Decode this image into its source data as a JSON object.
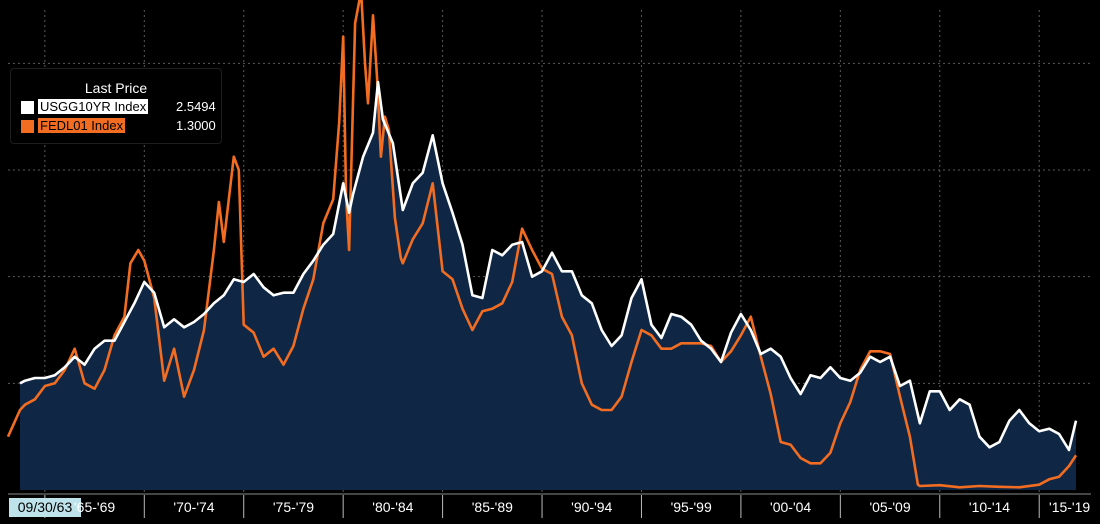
{
  "chart_data": {
    "type": "line",
    "x_tick_labels": [
      "09/30/63",
      "'65-'69",
      "'70-'74",
      "'75-'79",
      "'80-'84",
      "'85-'89",
      "'90-'94",
      "'95-'99",
      "'00-'04",
      "'05-'09",
      "'10-'14",
      "'15-'19"
    ],
    "x_start_label": "09/30/63",
    "xlim": [
      1963.75,
      2016.85
    ],
    "ylim": [
      0,
      18
    ],
    "grid": true,
    "legend": {
      "title": "Last Price",
      "placement": "top-left",
      "entries": [
        {
          "name": "USGG10YR Index",
          "value": "2.5494",
          "color": "#ffffff"
        },
        {
          "name": "FEDL01 Index",
          "value": "1.3000",
          "color": "#f26d21"
        }
      ]
    },
    "series": [
      {
        "name": "USGG10YR Index",
        "color": "#ffffff",
        "fill": "#0f2744",
        "x": [
          1963.75,
          1964.0,
          1964.5,
          1965.0,
          1965.5,
          1966.0,
          1966.5,
          1967.0,
          1967.5,
          1968.0,
          1968.5,
          1969.0,
          1969.5,
          1970.0,
          1970.5,
          1971.0,
          1971.5,
          1972.0,
          1972.5,
          1973.0,
          1973.5,
          1974.0,
          1974.5,
          1975.0,
          1975.5,
          1976.0,
          1976.5,
          1977.0,
          1977.5,
          1978.0,
          1978.5,
          1979.0,
          1979.5,
          1980.0,
          1980.3,
          1980.5,
          1981.0,
          1981.5,
          1981.75,
          1982.0,
          1982.5,
          1983.0,
          1983.5,
          1984.0,
          1984.5,
          1985.0,
          1985.5,
          1986.0,
          1986.5,
          1987.0,
          1987.5,
          1988.0,
          1988.5,
          1989.0,
          1989.5,
          1990.0,
          1990.5,
          1991.0,
          1991.5,
          1992.0,
          1992.5,
          1993.0,
          1993.5,
          1994.0,
          1994.5,
          1995.0,
          1995.5,
          1996.0,
          1996.5,
          1997.0,
          1997.5,
          1998.0,
          1998.5,
          1999.0,
          1999.5,
          2000.0,
          2000.5,
          2001.0,
          2001.5,
          2002.0,
          2002.5,
          2003.0,
          2003.5,
          2004.0,
          2004.5,
          2005.0,
          2005.5,
          2006.0,
          2006.5,
          2007.0,
          2007.5,
          2008.0,
          2008.5,
          2009.0,
          2009.5,
          2010.0,
          2010.5,
          2011.0,
          2011.5,
          2012.0,
          2012.5,
          2013.0,
          2013.5,
          2014.0,
          2014.5,
          2015.0,
          2015.5,
          2016.0,
          2016.5,
          2016.85
        ],
        "values": [
          4.0,
          4.1,
          4.2,
          4.2,
          4.3,
          4.6,
          5.0,
          4.7,
          5.3,
          5.6,
          5.6,
          6.3,
          7.0,
          7.8,
          7.4,
          6.1,
          6.4,
          6.1,
          6.3,
          6.6,
          7.0,
          7.3,
          7.9,
          7.8,
          8.1,
          7.6,
          7.3,
          7.4,
          7.4,
          8.1,
          8.6,
          9.2,
          9.6,
          11.5,
          10.4,
          11.1,
          12.5,
          13.4,
          15.3,
          13.9,
          13.0,
          10.5,
          11.5,
          11.9,
          13.3,
          11.5,
          10.4,
          9.2,
          7.3,
          7.2,
          9.0,
          8.8,
          9.2,
          9.3,
          8.0,
          8.2,
          8.9,
          8.2,
          8.2,
          7.3,
          7.0,
          6.0,
          5.4,
          5.8,
          7.2,
          7.9,
          6.2,
          5.7,
          6.6,
          6.5,
          6.2,
          5.6,
          5.3,
          4.8,
          5.9,
          6.6,
          6.0,
          5.1,
          5.3,
          5.0,
          4.2,
          3.6,
          4.3,
          4.2,
          4.6,
          4.2,
          4.1,
          4.4,
          5.0,
          4.8,
          5.0,
          3.9,
          4.1,
          2.5,
          3.7,
          3.7,
          3.0,
          3.4,
          3.2,
          2.0,
          1.6,
          1.8,
          2.6,
          3.0,
          2.5,
          2.2,
          2.3,
          2.1,
          1.5,
          2.6
        ]
      },
      {
        "name": "FEDL01 Index",
        "color": "#f26d21",
        "x": [
          1963.0,
          1963.75,
          1964.0,
          1964.5,
          1965.0,
          1965.5,
          1966.0,
          1966.5,
          1967.0,
          1967.5,
          1968.0,
          1968.5,
          1969.0,
          1969.3,
          1969.7,
          1970.0,
          1970.5,
          1971.0,
          1971.5,
          1972.0,
          1972.5,
          1973.0,
          1973.5,
          1973.75,
          1974.0,
          1974.5,
          1974.75,
          1975.0,
          1975.5,
          1976.0,
          1976.5,
          1977.0,
          1977.5,
          1978.0,
          1978.5,
          1979.0,
          1979.5,
          1979.8,
          1980.0,
          1980.15,
          1980.3,
          1980.6,
          1980.9,
          1981.1,
          1981.25,
          1981.5,
          1981.7,
          1981.9,
          1982.1,
          1982.3,
          1982.6,
          1982.9,
          1983.0,
          1983.5,
          1984.0,
          1984.5,
          1985.0,
          1985.5,
          1986.0,
          1986.5,
          1987.0,
          1987.5,
          1988.0,
          1988.5,
          1989.0,
          1989.5,
          1990.0,
          1990.5,
          1991.0,
          1991.5,
          1992.0,
          1992.5,
          1993.0,
          1993.5,
          1994.0,
          1994.5,
          1995.0,
          1995.5,
          1996.0,
          1996.5,
          1997.0,
          1997.5,
          1998.0,
          1998.5,
          1999.0,
          1999.5,
          2000.0,
          2000.5,
          2001.0,
          2001.5,
          2002.0,
          2002.5,
          2003.0,
          2003.5,
          2004.0,
          2004.5,
          2005.0,
          2005.5,
          2006.0,
          2006.5,
          2007.0,
          2007.5,
          2008.0,
          2008.5,
          2008.9,
          2009.0,
          2010.0,
          2011.0,
          2012.0,
          2013.0,
          2014.0,
          2015.0,
          2015.5,
          2016.0,
          2016.5,
          2016.85
        ],
        "values": [
          2.0,
          3.0,
          3.2,
          3.4,
          3.9,
          4.0,
          4.5,
          5.3,
          4.0,
          3.8,
          4.5,
          5.8,
          6.5,
          8.5,
          9.0,
          8.6,
          7.2,
          4.1,
          5.3,
          3.5,
          4.5,
          6.0,
          9.0,
          10.8,
          9.3,
          12.5,
          12.0,
          6.2,
          5.9,
          5.0,
          5.3,
          4.7,
          5.4,
          6.8,
          7.9,
          10.0,
          10.9,
          13.8,
          17.0,
          11.0,
          9.0,
          17.5,
          18.7,
          16.0,
          14.5,
          17.8,
          15.5,
          12.5,
          14.0,
          13.5,
          10.2,
          8.7,
          8.5,
          9.4,
          10.0,
          11.5,
          8.2,
          7.9,
          6.8,
          6.0,
          6.7,
          6.8,
          7.0,
          7.8,
          9.8,
          9.0,
          8.3,
          8.1,
          6.5,
          5.8,
          4.0,
          3.2,
          3.0,
          3.0,
          3.5,
          4.8,
          6.0,
          5.8,
          5.3,
          5.3,
          5.5,
          5.5,
          5.5,
          5.4,
          4.8,
          5.2,
          5.8,
          6.5,
          5.0,
          3.6,
          1.8,
          1.7,
          1.2,
          1.0,
          1.0,
          1.4,
          2.5,
          3.3,
          4.5,
          5.2,
          5.2,
          5.1,
          3.5,
          2.0,
          0.2,
          0.15,
          0.18,
          0.1,
          0.15,
          0.12,
          0.1,
          0.2,
          0.4,
          0.5,
          0.9,
          1.3
        ]
      }
    ]
  }
}
